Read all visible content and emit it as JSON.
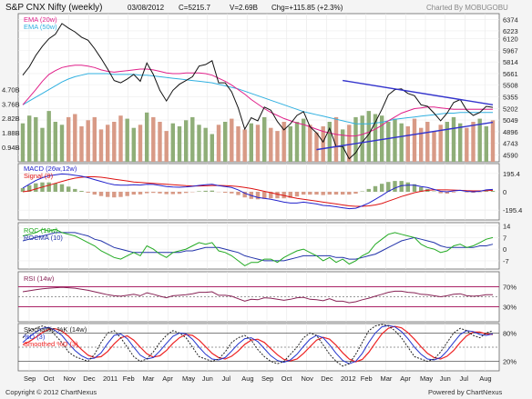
{
  "header": {
    "title": "S&P CNX Nifty (weekly)",
    "date": "03/08/2012",
    "close": "C=5215.7",
    "volume": "V=2.69B",
    "change": "Chg=+115.85 (+2.3%)",
    "charted_by": "Charted By MOBUGOBU"
  },
  "footer": {
    "copyright": "Copyright © 2012 ChartNexus",
    "powered": "Powered by ChartNexus"
  },
  "colors": {
    "price": "#111111",
    "ema20": "#e0208a",
    "ema50": "#30b0e0",
    "vol_up": "#8fae78",
    "vol_down": "#d89a86",
    "macd": "#2222cc",
    "signal": "#dd1111",
    "roc": "#22aa22",
    "rocma": "#2233aa",
    "rsi": "#882255",
    "stoch_k": "#222222",
    "stoch_d": "#2233cc",
    "stoch_sd": "#ee2222",
    "trend": "#3333cc",
    "bound": "#aa2266"
  },
  "chart_data": [
    {
      "type": "line",
      "title": "S&P CNX Nifty (weekly)",
      "legend": [
        "EMA (20w)",
        "EMA (50w)"
      ],
      "legend_placement": "top-left",
      "y_ticks": [
        "6374",
        "6223",
        "6120",
        "5967",
        "5814",
        "5661",
        "5508",
        "5355",
        "5202",
        "5049",
        "4896",
        "4743",
        "4590"
      ],
      "ylim": [
        4500,
        6450
      ],
      "close": [
        5640,
        5750,
        5900,
        6020,
        6120,
        6180,
        6320,
        6260,
        6210,
        6140,
        6100,
        5990,
        5860,
        5720,
        5570,
        5540,
        5590,
        5650,
        5560,
        5800,
        5650,
        5440,
        5300,
        5440,
        5520,
        5570,
        5620,
        5760,
        5780,
        5830,
        5540,
        5540,
        5420,
        5210,
        4930,
        5080,
        5040,
        5220,
        5180,
        5030,
        4920,
        5000,
        5110,
        5160,
        4960,
        4880,
        4760,
        4940,
        4700,
        4700,
        4540,
        4620,
        4760,
        4860,
        5020,
        5190,
        5380,
        5450,
        5460,
        5400,
        5370,
        5250,
        5230,
        5140,
        5040,
        5140,
        5280,
        5320,
        5180,
        5110,
        5150,
        5230,
        5216
      ],
      "ema20": [
        5250,
        5350,
        5450,
        5560,
        5650,
        5700,
        5740,
        5760,
        5770,
        5770,
        5760,
        5740,
        5710,
        5690,
        5680,
        5690,
        5700,
        5710,
        5720,
        5720,
        5710,
        5690,
        5670,
        5660,
        5660,
        5670,
        5670,
        5670,
        5660,
        5640,
        5600,
        5560,
        5510,
        5450,
        5390,
        5320,
        5260,
        5200,
        5150,
        5110,
        5070,
        5040,
        5010,
        4990,
        4960,
        4930,
        4900,
        4880,
        4860,
        4850,
        4840,
        4840,
        4860,
        4890,
        4930,
        4980,
        5040,
        5090,
        5140,
        5170,
        5200,
        5210,
        5220,
        5220,
        5210,
        5200,
        5190,
        5190,
        5190,
        5190,
        5190,
        5190,
        5190
      ],
      "ema50": [
        5250,
        5300,
        5350,
        5400,
        5450,
        5500,
        5550,
        5590,
        5620,
        5640,
        5660,
        5660,
        5660,
        5660,
        5650,
        5650,
        5650,
        5650,
        5640,
        5640,
        5630,
        5620,
        5610,
        5600,
        5590,
        5580,
        5570,
        5560,
        5550,
        5540,
        5520,
        5500,
        5480,
        5460,
        5430,
        5400,
        5370,
        5340,
        5310,
        5280,
        5250,
        5220,
        5190,
        5160,
        5140,
        5120,
        5100,
        5080,
        5060,
        5040,
        5020,
        5000,
        5000,
        5000,
        5010,
        5020,
        5040,
        5060,
        5070,
        5080,
        5090,
        5100,
        5110,
        5120,
        5130,
        5140,
        5140,
        5150,
        5150,
        5150,
        5150,
        5150,
        5150
      ],
      "trendlines": [
        {
          "from": [
            45,
            4660
          ],
          "to": [
            72,
            5020
          ]
        },
        {
          "from": [
            49,
            5570
          ],
          "to": [
            72,
            5250
          ]
        }
      ]
    },
    {
      "type": "bar",
      "title": "Volume",
      "y_ticks": [
        "4.70B",
        "3.76B",
        "2.82B",
        "1.88B",
        "0.94B"
      ],
      "ylim": [
        0,
        4.9
      ],
      "values": [
        2.5,
        3.0,
        2.9,
        2.2,
        3.3,
        2.6,
        2.4,
        2.9,
        3.1,
        2.3,
        2.7,
        2.9,
        2.1,
        2.4,
        2.6,
        3.0,
        2.8,
        2.2,
        2.4,
        3.2,
        2.9,
        2.6,
        2.0,
        2.5,
        2.3,
        2.7,
        2.9,
        2.4,
        2.2,
        1.8,
        2.4,
        2.6,
        2.8,
        2.3,
        2.1,
        2.5,
        2.4,
        2.9,
        2.2,
        2.0,
        2.6,
        2.3,
        2.6,
        2.8,
        2.4,
        1.9,
        2.3,
        2.6,
        2.9,
        2.1,
        2.4,
        2.9,
        3.0,
        3.3,
        3.1,
        3.0,
        2.6,
        2.8,
        2.5,
        2.3,
        2.8,
        2.2,
        2.6,
        2.0,
        2.4,
        2.6,
        2.9,
        2.5,
        2.2,
        2.6,
        2.8,
        2.3,
        2.69
      ]
    },
    {
      "type": "line",
      "title": "MACD (26w,12w)",
      "legend": [
        "MACD (26w,12w)",
        "Signal (9)"
      ],
      "y_ticks": [
        "195.4",
        "0",
        "-195.4"
      ],
      "ylim": [
        -300,
        300
      ],
      "macd": [
        40,
        80,
        120,
        150,
        170,
        180,
        190,
        185,
        175,
        165,
        150,
        130,
        110,
        90,
        75,
        70,
        70,
        75,
        72,
        80,
        78,
        68,
        55,
        50,
        48,
        52,
        58,
        68,
        75,
        80,
        65,
        55,
        45,
        20,
        -15,
        -40,
        -60,
        -70,
        -80,
        -95,
        -110,
        -120,
        -120,
        -110,
        -120,
        -130,
        -145,
        -150,
        -160,
        -170,
        -180,
        -175,
        -150,
        -120,
        -80,
        -40,
        5,
        40,
        65,
        70,
        70,
        55,
        45,
        25,
        5,
        0,
        10,
        15,
        5,
        0,
        5,
        20,
        25
      ],
      "signal": [
        0,
        10,
        30,
        50,
        70,
        90,
        110,
        130,
        145,
        155,
        160,
        160,
        155,
        145,
        135,
        125,
        115,
        105,
        100,
        95,
        90,
        85,
        80,
        75,
        70,
        65,
        62,
        62,
        64,
        67,
        68,
        66,
        62,
        55,
        45,
        35,
        20,
        5,
        -10,
        -25,
        -40,
        -55,
        -70,
        -80,
        -90,
        -100,
        -110,
        -120,
        -130,
        -140,
        -150,
        -155,
        -155,
        -150,
        -140,
        -125,
        -100,
        -75,
        -50,
        -30,
        -10,
        5,
        15,
        20,
        20,
        20,
        18,
        15,
        12,
        10,
        10,
        12,
        15
      ]
    },
    {
      "type": "line",
      "title": "ROC (10w)",
      "legend": [
        "ROC (10w)",
        "ROCMA (10)"
      ],
      "y_ticks": [
        "14",
        "7",
        "0",
        "-7"
      ],
      "ylim": [
        -12,
        16
      ],
      "roc": [
        8,
        9,
        10,
        12,
        11,
        12,
        10,
        9,
        8,
        6,
        4,
        2,
        -1,
        -3,
        -5,
        -6,
        -4,
        -2,
        -4,
        2,
        0,
        -3,
        -5,
        -2,
        -1,
        0,
        2,
        4,
        3,
        4,
        -1,
        -2,
        -4,
        -7,
        -10,
        -8,
        -8,
        -6,
        -6,
        -8,
        -5,
        -3,
        -1,
        0,
        -2,
        -4,
        -7,
        -5,
        -8,
        -6,
        -9,
        -7,
        -4,
        -2,
        3,
        6,
        9,
        10,
        9,
        8,
        7,
        3,
        1,
        0,
        -2,
        -1,
        2,
        3,
        1,
        2,
        4,
        6,
        7
      ],
      "rocma": [
        5,
        6,
        7,
        8,
        9,
        10,
        10,
        10,
        10,
        9,
        8,
        6,
        5,
        3,
        1,
        0,
        -1,
        -2,
        -2,
        -2,
        -2,
        -2,
        -2,
        -2,
        -2,
        -1,
        -1,
        0,
        1,
        1,
        1,
        0,
        -1,
        -2,
        -4,
        -5,
        -6,
        -7,
        -7,
        -7,
        -7,
        -6,
        -5,
        -4,
        -4,
        -4,
        -4,
        -4,
        -5,
        -5,
        -6,
        -6,
        -5,
        -4,
        -3,
        -1,
        1,
        3,
        5,
        6,
        7,
        6,
        5,
        4,
        2,
        1,
        1,
        1,
        1,
        1,
        2,
        2,
        3
      ]
    },
    {
      "type": "line",
      "title": "RSI (14w)",
      "legend": [
        "RSI (14w)"
      ],
      "y_ticks": [
        "70%",
        "30%"
      ],
      "ylim": [
        0,
        100
      ],
      "rsi": [
        60,
        62,
        64,
        66,
        67,
        68,
        69,
        68,
        67,
        65,
        63,
        60,
        57,
        54,
        52,
        51,
        53,
        55,
        52,
        58,
        55,
        51,
        48,
        52,
        53,
        54,
        56,
        59,
        59,
        60,
        53,
        53,
        51,
        46,
        41,
        45,
        44,
        48,
        47,
        45,
        43,
        45,
        48,
        49,
        45,
        44,
        42,
        46,
        41,
        41,
        38,
        40,
        44,
        47,
        51,
        55,
        59,
        61,
        61,
        59,
        58,
        55,
        54,
        52,
        50,
        52,
        55,
        56,
        52,
        51,
        52,
        54,
        54
      ]
    },
    {
      "type": "line",
      "title": "Stochastic %K (14w)",
      "legend": [
        "Stochastic %K (14w)",
        "%D (3)",
        "Smoothed %D (3)"
      ],
      "y_ticks": [
        "80%",
        "20%"
      ],
      "ylim": [
        0,
        100
      ],
      "k": [
        70,
        85,
        90,
        95,
        90,
        75,
        60,
        40,
        30,
        25,
        20,
        35,
        60,
        80,
        85,
        70,
        50,
        30,
        20,
        25,
        40,
        60,
        75,
        85,
        80,
        70,
        50,
        30,
        25,
        20,
        25,
        40,
        60,
        70,
        75,
        65,
        45,
        30,
        20,
        15,
        20,
        35,
        50,
        70,
        80,
        75,
        55,
        35,
        20,
        10,
        15,
        35,
        60,
        85,
        95,
        98,
        95,
        85,
        70,
        50,
        30,
        25,
        20,
        25,
        40,
        60,
        80,
        90,
        85,
        75,
        70,
        80,
        85
      ],
      "d": [
        60,
        72,
        82,
        90,
        92,
        85,
        75,
        58,
        43,
        32,
        25,
        27,
        38,
        58,
        75,
        78,
        68,
        50,
        33,
        25,
        28,
        42,
        58,
        73,
        80,
        78,
        67,
        50,
        35,
        25,
        23,
        28,
        42,
        57,
        68,
        70,
        62,
        47,
        32,
        22,
        18,
        23,
        35,
        52,
        67,
        75,
        70,
        55,
        37,
        22,
        15,
        20,
        37,
        60,
        80,
        93,
        96,
        93,
        83,
        68,
        50,
        35,
        25,
        23,
        28,
        42,
        60,
        77,
        85,
        83,
        77,
        75,
        78
      ],
      "sd": [
        55,
        62,
        71,
        81,
        88,
        89,
        84,
        73,
        59,
        45,
        33,
        28,
        30,
        41,
        57,
        70,
        74,
        65,
        50,
        36,
        29,
        32,
        43,
        58,
        70,
        77,
        75,
        65,
        51,
        37,
        28,
        25,
        31,
        42,
        56,
        65,
        67,
        60,
        47,
        34,
        24,
        21,
        25,
        37,
        51,
        65,
        71,
        67,
        54,
        38,
        25,
        19,
        24,
        39,
        59,
        78,
        90,
        94,
        91,
        81,
        67,
        51,
        37,
        28,
        25,
        31,
        43,
        60,
        74,
        82,
        82,
        78,
        77
      ]
    },
    {
      "type": "table",
      "title": "x-axis",
      "x_labels": [
        "Sep",
        "Oct",
        "Nov",
        "Dec",
        "2011",
        "Feb",
        "Mar",
        "Apr",
        "May",
        "Jun",
        "Jul",
        "Aug",
        "Sep",
        "Oct",
        "Nov",
        "Dec",
        "2012",
        "Feb",
        "Mar",
        "Apr",
        "May",
        "Jun",
        "Jul",
        "Aug"
      ]
    }
  ]
}
